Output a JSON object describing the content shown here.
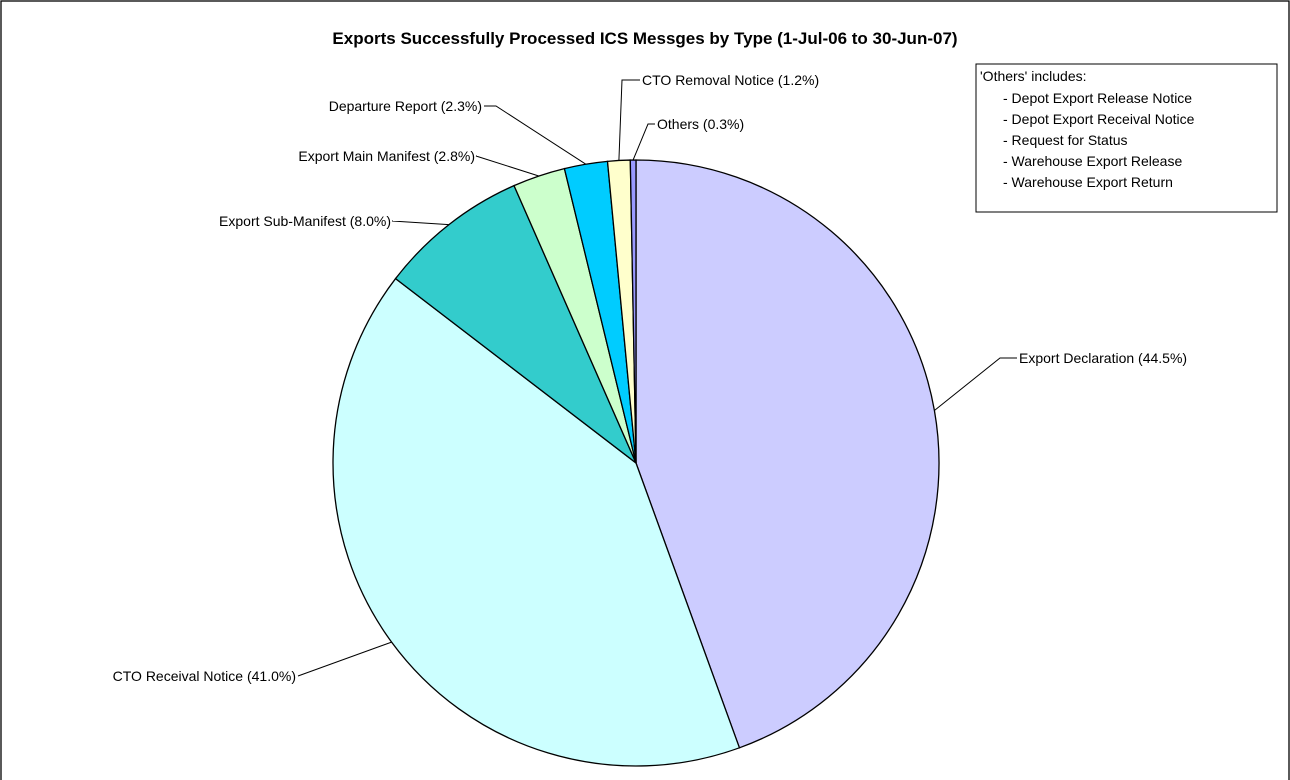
{
  "chart_data": {
    "type": "pie",
    "title": "Exports Successfully Processed ICS Messges by Type (1-Jul-06 to 30-Jun-07)",
    "slices": [
      {
        "name": "Export Declaration",
        "value": 44.5,
        "label": "Export Declaration (44.5%)",
        "color": "#ccccff"
      },
      {
        "name": "CTO Receival Notice",
        "value": 41.0,
        "label": "CTO Receival Notice (41.0%)",
        "color": "#ccffff"
      },
      {
        "name": "Export Sub-Manifest",
        "value": 8.0,
        "label": "Export Sub-Manifest (8.0%)",
        "color": "#33cccc"
      },
      {
        "name": "Export Main Manifest",
        "value": 2.8,
        "label": "Export Main Manifest (2.8%)",
        "color": "#ccffcc"
      },
      {
        "name": "Departure Report",
        "value": 2.3,
        "label": "Departure Report (2.3%)",
        "color": "#00ccff"
      },
      {
        "name": "CTO Removal Notice",
        "value": 1.2,
        "label": "CTO Removal Notice (1.2%)",
        "color": "#ffffcc"
      },
      {
        "name": "Others",
        "value": 0.3,
        "label": "Others (0.3%)",
        "color": "#9999ff"
      }
    ],
    "start": "12 o'clock",
    "direction": "clockwise",
    "annotation": {
      "heading": "'Others' includes:",
      "items": [
        "- Depot Export Release Notice",
        "- Depot Export Receival Notice",
        "- Request for Status",
        "- Warehouse Export Release",
        "- Warehouse Export Return"
      ]
    }
  }
}
